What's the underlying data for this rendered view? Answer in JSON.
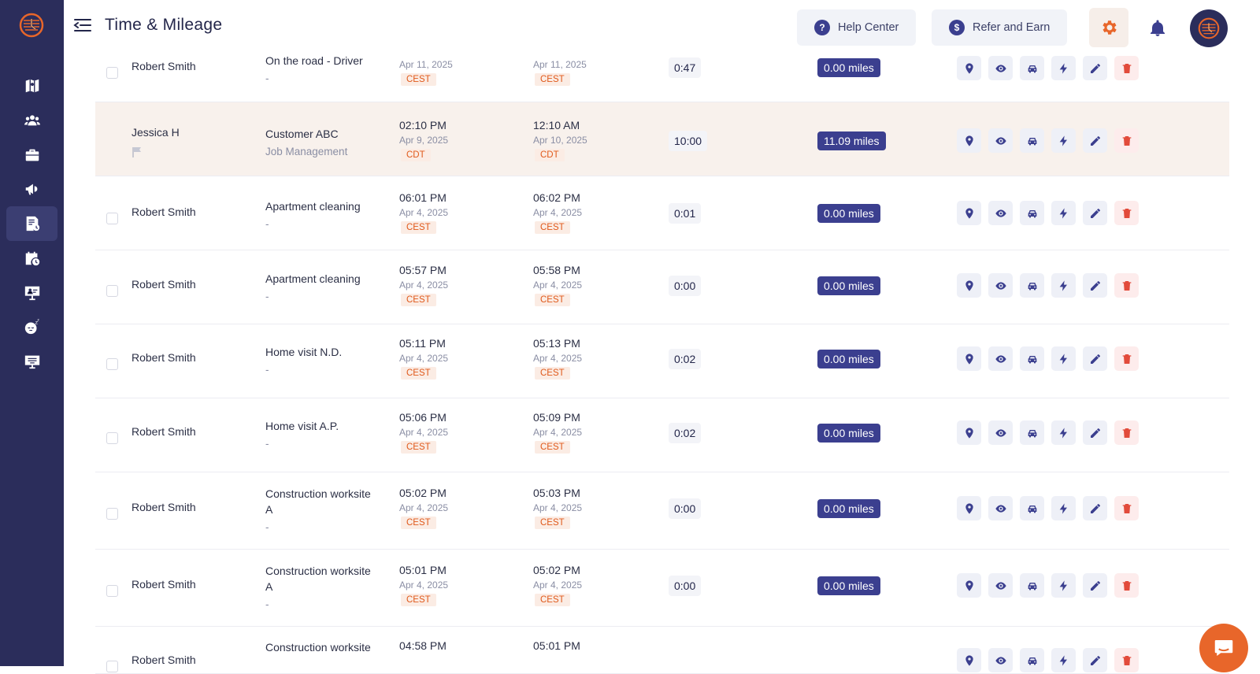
{
  "header": {
    "title": "Time & Mileage",
    "help_label": "Help Center",
    "help_icon_glyph": "?",
    "refer_label": "Refer and Earn",
    "refer_icon_glyph": "$"
  },
  "colors": {
    "sidebar": "#2b2d5b",
    "accent": "#3b3f8f",
    "orange": "#e8662a",
    "delete": "#e24b3b"
  },
  "sidebar": {
    "items": [
      {
        "name": "map-icon"
      },
      {
        "name": "team-icon"
      },
      {
        "name": "briefcase-icon"
      },
      {
        "name": "megaphone-icon"
      },
      {
        "name": "timesheet-icon",
        "active": true
      },
      {
        "name": "calendar-clock-icon"
      },
      {
        "name": "presentation-icon"
      },
      {
        "name": "sleep-icon"
      },
      {
        "name": "monitor-icon"
      }
    ]
  },
  "rows": [
    {
      "name": "Robert Smith",
      "job": "On the road - Driver",
      "job_sub": "-",
      "start_time": "",
      "start_date": "Apr 11, 2025",
      "start_tz": "CEST",
      "end_time": "",
      "end_date": "Apr 11, 2025",
      "end_tz": "CEST",
      "duration": "0:47",
      "miles": "0.00 miles"
    },
    {
      "name": "Jessica H",
      "job": "Customer ABC",
      "job_sub": "Job Management",
      "start_time": "02:10 PM",
      "start_date": "Apr 9, 2025",
      "start_tz": "CDT",
      "end_time": "12:10 AM",
      "end_date": "Apr 10, 2025",
      "end_tz": "CDT",
      "duration": "10:00",
      "miles": "11.09 miles"
    },
    {
      "name": "Robert Smith",
      "job": "Apartment cleaning",
      "job_sub": "-",
      "start_time": "06:01 PM",
      "start_date": "Apr 4, 2025",
      "start_tz": "CEST",
      "end_time": "06:02 PM",
      "end_date": "Apr 4, 2025",
      "end_tz": "CEST",
      "duration": "0:01",
      "miles": "0.00 miles"
    },
    {
      "name": "Robert Smith",
      "job": "Apartment cleaning",
      "job_sub": "-",
      "start_time": "05:57 PM",
      "start_date": "Apr 4, 2025",
      "start_tz": "CEST",
      "end_time": "05:58 PM",
      "end_date": "Apr 4, 2025",
      "end_tz": "CEST",
      "duration": "0:00",
      "miles": "0.00 miles"
    },
    {
      "name": "Robert Smith",
      "job": "Home visit N.D.",
      "job_sub": "-",
      "start_time": "05:11 PM",
      "start_date": "Apr 4, 2025",
      "start_tz": "CEST",
      "end_time": "05:13 PM",
      "end_date": "Apr 4, 2025",
      "end_tz": "CEST",
      "duration": "0:02",
      "miles": "0.00 miles"
    },
    {
      "name": "Robert Smith",
      "job": "Home visit A.P.",
      "job_sub": "-",
      "start_time": "05:06 PM",
      "start_date": "Apr 4, 2025",
      "start_tz": "CEST",
      "end_time": "05:09 PM",
      "end_date": "Apr 4, 2025",
      "end_tz": "CEST",
      "duration": "0:02",
      "miles": "0.00 miles"
    },
    {
      "name": "Robert Smith",
      "job": "Construction worksite",
      "job_line2": "A",
      "job_sub": "-",
      "start_time": "05:02 PM",
      "start_date": "Apr 4, 2025",
      "start_tz": "CEST",
      "end_time": "05:03 PM",
      "end_date": "Apr 4, 2025",
      "end_tz": "CEST",
      "duration": "0:00",
      "miles": "0.00 miles"
    },
    {
      "name": "Robert Smith",
      "job": "Construction worksite",
      "job_line2": "A",
      "job_sub": "-",
      "start_time": "05:01 PM",
      "start_date": "Apr 4, 2025",
      "start_tz": "CEST",
      "end_time": "05:02 PM",
      "end_date": "Apr 4, 2025",
      "end_tz": "CEST",
      "duration": "0:00",
      "miles": "0.00 miles"
    },
    {
      "name": "Robert Smith",
      "job": "Construction worksite",
      "job_sub": "",
      "start_time": "04:58 PM",
      "start_date": "",
      "start_tz": "",
      "end_time": "05:01 PM",
      "end_date": "",
      "end_tz": "",
      "duration": "",
      "miles": ""
    }
  ],
  "actions": [
    "location-icon",
    "view-icon",
    "car-icon",
    "bolt-icon",
    "edit-icon",
    "delete-icon"
  ]
}
